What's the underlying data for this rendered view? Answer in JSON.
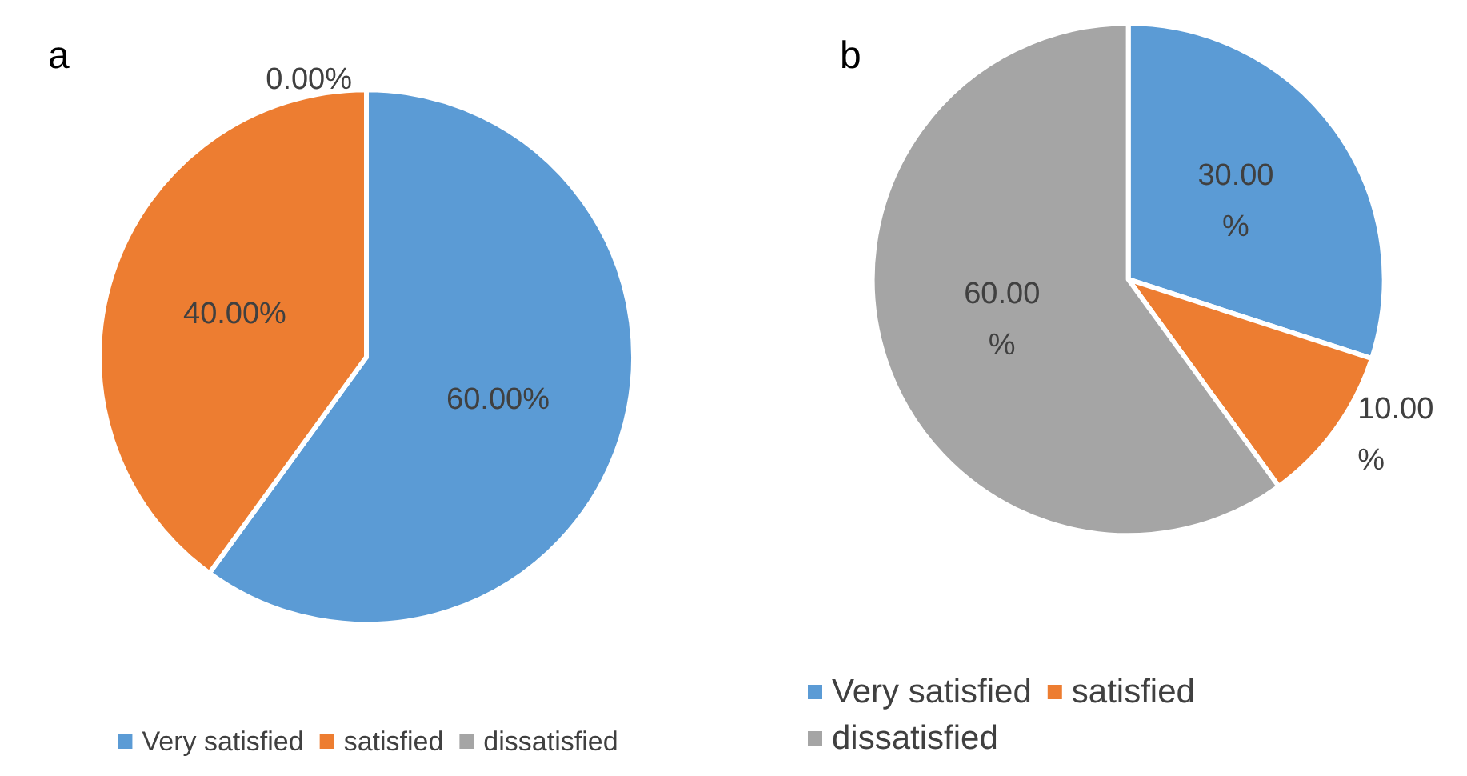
{
  "chart_data": [
    {
      "type": "pie",
      "title": "a",
      "categories": [
        "Very satisfied",
        "satisfied",
        "dissatisfied"
      ],
      "values": [
        60,
        40,
        0
      ],
      "colors": [
        "#5b9bd5",
        "#ed7d31",
        "#a5a5a5"
      ],
      "value_labels": [
        "60.00%",
        "40.00%",
        "0.00%"
      ],
      "legend": "bottom"
    },
    {
      "type": "pie",
      "title": "b",
      "categories": [
        "Very satisfied",
        "satisfied",
        "dissatisfied"
      ],
      "values": [
        30,
        10,
        60
      ],
      "colors": [
        "#5b9bd5",
        "#ed7d31",
        "#a5a5a5"
      ],
      "value_labels": [
        "30.00%",
        "10.00%",
        "60.00%"
      ],
      "legend": "bottom left"
    }
  ]
}
